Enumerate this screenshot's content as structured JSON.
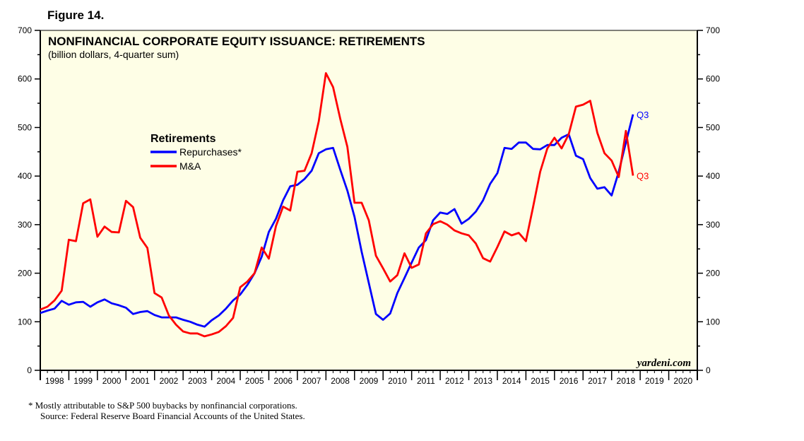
{
  "figure_label": "Figure 14.",
  "footnotes": [
    "*   Mostly attributable to S&P 500 buybacks by nonfinancial corporations.",
    "Source: Federal Reserve Board Financial Accounts of the United States."
  ],
  "chart_data": {
    "type": "line",
    "title": "NONFINANCIAL CORPORATE EQUITY ISSUANCE: RETIREMENTS",
    "subtitle": "(billion dollars, 4-quarter sum)",
    "legend_title": "Retirements",
    "legend_placement": "upper-left",
    "watermark": "yardeni.com",
    "ylim": [
      0,
      700
    ],
    "y_ticks": [
      0,
      100,
      200,
      300,
      400,
      500,
      600,
      700
    ],
    "x_range": [
      1998,
      2021
    ],
    "x_tick_labels": [
      "1998",
      "1999",
      "2000",
      "2001",
      "2002",
      "2003",
      "2004",
      "2005",
      "2006",
      "2007",
      "2008",
      "2009",
      "2010",
      "2011",
      "2012",
      "2013",
      "2014",
      "2015",
      "2016",
      "2017",
      "2018",
      "2019",
      "2020"
    ],
    "x_start": 1998.0,
    "x_step": 0.25,
    "series": [
      {
        "name": "Repurchases*",
        "color": "#0000ff",
        "end_label": "Q3",
        "values": [
          118,
          123,
          127,
          143,
          135,
          140,
          141,
          131,
          140,
          146,
          138,
          134,
          129,
          116,
          120,
          122,
          114,
          109,
          109,
          109,
          104,
          100,
          94,
          90,
          103,
          113,
          127,
          144,
          156,
          176,
          200,
          234,
          285,
          312,
          350,
          379,
          382,
          394,
          411,
          447,
          455,
          458,
          413,
          370,
          316,
          244,
          180,
          116,
          104,
          117,
          159,
          190,
          222,
          253,
          268,
          309,
          325,
          322,
          332,
          302,
          312,
          327,
          350,
          384,
          406,
          458,
          456,
          469,
          469,
          456,
          455,
          464,
          464,
          479,
          486,
          442,
          435,
          396,
          374,
          377,
          360,
          409,
          469,
          527
        ]
      },
      {
        "name": "M&A",
        "color": "#ff0000",
        "end_label": "Q3",
        "values": [
          125,
          131,
          144,
          164,
          269,
          266,
          344,
          352,
          275,
          296,
          285,
          284,
          349,
          336,
          273,
          252,
          159,
          150,
          113,
          94,
          80,
          76,
          76,
          70,
          74,
          79,
          91,
          108,
          171,
          183,
          200,
          253,
          230,
          297,
          337,
          329,
          409,
          411,
          447,
          513,
          612,
          583,
          518,
          460,
          345,
          345,
          309,
          236,
          210,
          183,
          196,
          241,
          211,
          218,
          282,
          301,
          307,
          300,
          288,
          282,
          278,
          261,
          231,
          224,
          254,
          286,
          278,
          283,
          266,
          336,
          409,
          457,
          479,
          457,
          486,
          543,
          547,
          555,
          489,
          447,
          432,
          398,
          493,
          401
        ]
      }
    ]
  }
}
